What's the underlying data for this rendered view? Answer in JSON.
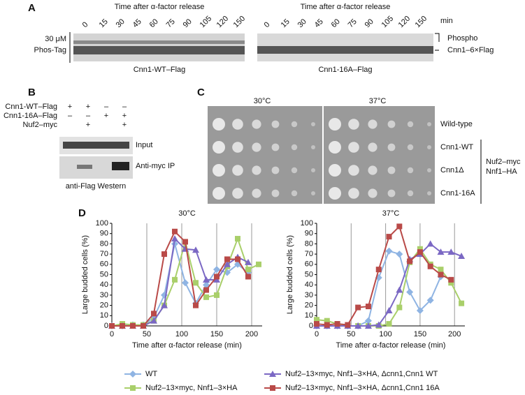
{
  "panel_a": {
    "label": "A",
    "time_title_left": "Time after α-factor release",
    "time_title_right": "Time after α-factor release",
    "times_left": [
      "0",
      "15",
      "30",
      "45",
      "60",
      "75",
      "90",
      "105",
      "120",
      "150"
    ],
    "times_right": [
      "0",
      "15",
      "30",
      "45",
      "60",
      "75",
      "90",
      "105",
      "120",
      "150"
    ],
    "unit": "min",
    "gel_label_lines": [
      "30 μM",
      "Phos-Tag"
    ],
    "left_caption": "Cnn1-WT–Flag",
    "right_caption": "Cnn1-16A–Flag",
    "band_labels": [
      "Phospho",
      "Cnn1–6×Flag"
    ]
  },
  "panel_b": {
    "label": "B",
    "rows": [
      {
        "name": "Cnn1-WT–Flag",
        "marks": [
          "+",
          "+",
          "–",
          "–"
        ]
      },
      {
        "name": "Cnn1-16A–Flag",
        "marks": [
          "–",
          "–",
          "+",
          "+"
        ]
      },
      {
        "name": "Nuf2–myc",
        "marks": [
          null,
          "+",
          null,
          "+"
        ]
      }
    ],
    "blot_labels": [
      "Input",
      "Anti-myc IP"
    ],
    "caption": "anti-Flag Western"
  },
  "panel_c": {
    "label": "C",
    "temps": [
      "30°C",
      "37°C"
    ],
    "strains": [
      "Wild-type",
      "Cnn1-WT",
      "Cnn1Δ",
      "Cnn1-16A"
    ],
    "bracket_label": [
      "Nuf2–myc",
      "Nnf1–HA"
    ]
  },
  "panel_d": {
    "label": "D"
  },
  "chart_data": [
    {
      "type": "line",
      "title": "30°C",
      "x_label": "Time after α-factor release (min)",
      "y_label": "Large budded cells (%)",
      "x": [
        0,
        15,
        30,
        45,
        60,
        75,
        90,
        105,
        120,
        135,
        150,
        165,
        180,
        195,
        210
      ],
      "xlim": [
        0,
        215
      ],
      "ylim": [
        0,
        100
      ],
      "xticks": [
        0,
        50,
        100,
        150,
        200
      ],
      "yticks": [
        0,
        10,
        20,
        30,
        40,
        50,
        60,
        70,
        80,
        90,
        100
      ],
      "x_grid": true,
      "series": [
        {
          "name": "WT",
          "color": "#8fb4e3",
          "marker": "diamond",
          "values": [
            0,
            0,
            1,
            1,
            8,
            30,
            80,
            42,
            22,
            40,
            55,
            52,
            60,
            52,
            null
          ]
        },
        {
          "name": "Nuf2–13×myc, Nnf1–3×HA",
          "color": "#a9cf6a",
          "marker": "square",
          "values": [
            0,
            2,
            1,
            1,
            5,
            20,
            45,
            82,
            42,
            28,
            30,
            58,
            85,
            55,
            60
          ]
        },
        {
          "name": "Nuf2–13×myc, Nnf1–3×HA, Δcnn1,Cnn1 WT",
          "color": "#7b68c4",
          "marker": "triangle",
          "values": [
            0,
            0,
            0,
            0,
            5,
            20,
            85,
            75,
            74,
            45,
            45,
            60,
            67,
            62,
            null
          ]
        },
        {
          "name": "Nuf2–13×myc, Nnf1–3×HA, Δcnn1,Cnn1 16A",
          "color": "#b94a48",
          "marker": "square",
          "values": [
            0,
            0,
            0,
            0,
            12,
            70,
            92,
            82,
            20,
            35,
            48,
            65,
            65,
            48,
            null
          ]
        }
      ]
    },
    {
      "type": "line",
      "title": "37°C",
      "x_label": "Time after α-factor release (min)",
      "y_label": "Large budded cells (%)",
      "x": [
        0,
        15,
        30,
        45,
        60,
        75,
        90,
        105,
        120,
        135,
        150,
        165,
        180,
        195,
        210
      ],
      "xlim": [
        0,
        215
      ],
      "ylim": [
        0,
        100
      ],
      "xticks": [
        0,
        50,
        100,
        150,
        200
      ],
      "yticks": [
        0,
        10,
        20,
        30,
        40,
        50,
        60,
        70,
        80,
        90,
        100
      ],
      "x_grid": true,
      "series": [
        {
          "name": "WT",
          "color": "#8fb4e3",
          "marker": "diamond",
          "values": [
            0,
            0,
            0,
            0,
            0,
            5,
            47,
            73,
            70,
            33,
            15,
            25,
            48,
            null,
            null
          ]
        },
        {
          "name": "Nuf2–13×myc, Nnf1–3×HA",
          "color": "#a9cf6a",
          "marker": "square",
          "values": [
            6,
            5,
            2,
            0,
            0,
            0,
            0,
            2,
            18,
            62,
            75,
            60,
            55,
            42,
            22
          ]
        },
        {
          "name": "Nuf2–13×myc, Nnf1–3×HA, Δcnn1,Cnn1 WT",
          "color": "#7b68c4",
          "marker": "triangle",
          "values": [
            0,
            0,
            0,
            0,
            0,
            0,
            1,
            15,
            35,
            65,
            70,
            80,
            72,
            72,
            68
          ]
        },
        {
          "name": "Nuf2–13×myc, Nnf1–3×HA, Δcnn1,Cnn1 16A",
          "color": "#b94a48",
          "marker": "square",
          "values": [
            2,
            1,
            2,
            1,
            18,
            19,
            55,
            87,
            97,
            63,
            72,
            58,
            50,
            45,
            null
          ]
        }
      ]
    }
  ]
}
